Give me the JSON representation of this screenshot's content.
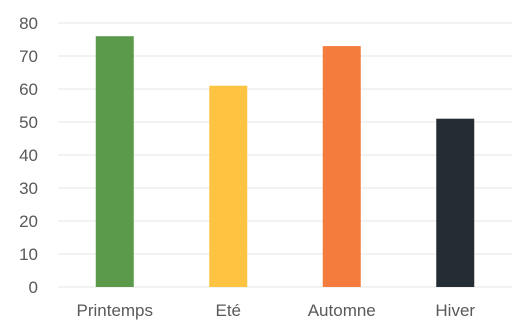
{
  "chart_data": {
    "type": "bar",
    "title": "",
    "xlabel": "",
    "ylabel": "",
    "categories": [
      "Printemps",
      "Eté",
      "Automne",
      "Hiver"
    ],
    "values": [
      76,
      61,
      73,
      51
    ],
    "colors": [
      "#5b9a4a",
      "#ffc342",
      "#f47c3c",
      "#252d34"
    ],
    "ylim": [
      0,
      80
    ],
    "yticks": [
      "0",
      "10",
      "20",
      "30",
      "40",
      "50",
      "60",
      "70",
      "80"
    ],
    "grid": true,
    "legend": "none"
  }
}
